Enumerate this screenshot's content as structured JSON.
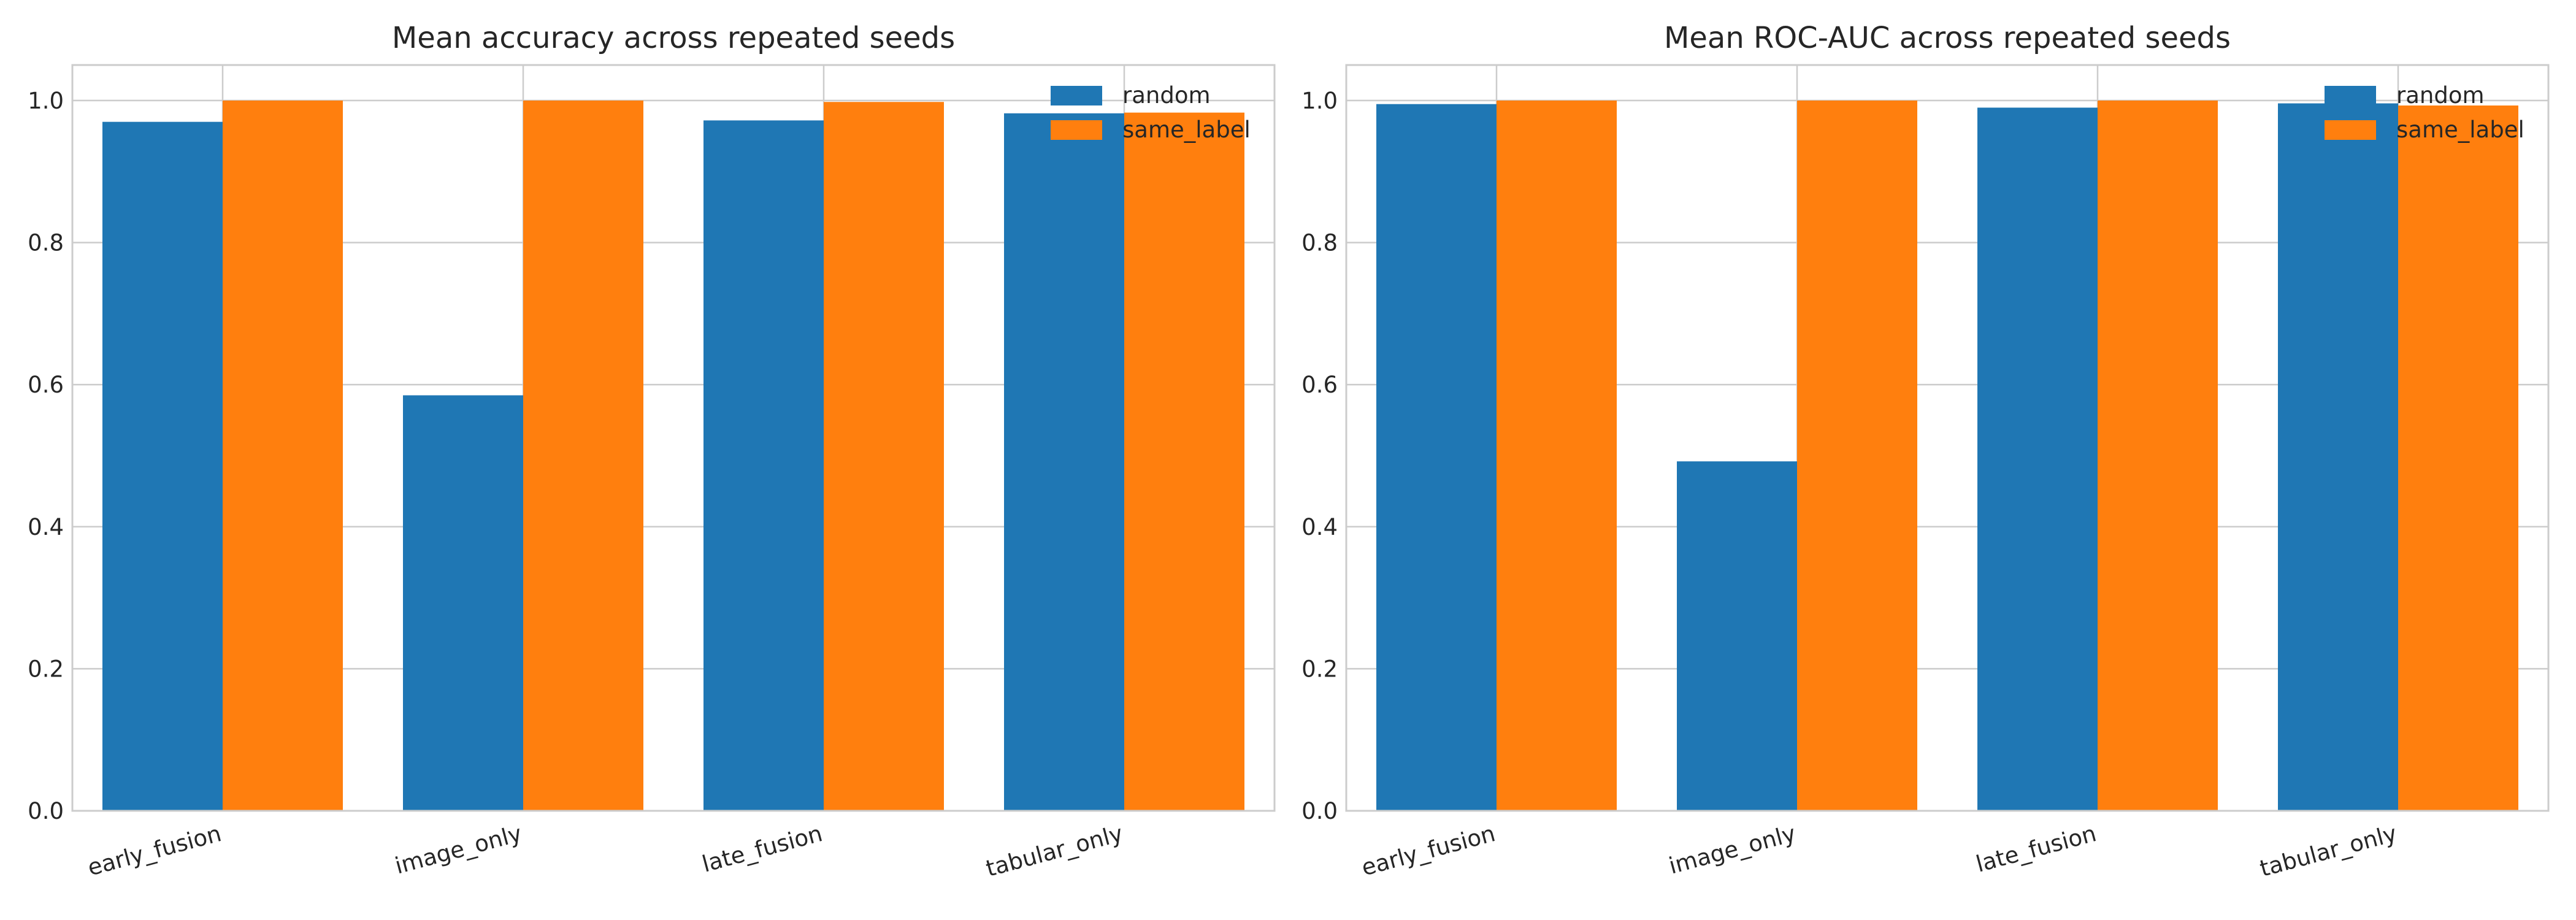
{
  "colors": {
    "random": "#1f77b4",
    "same_label": "#ff7f0e",
    "grid": "#cccccc",
    "frame": "#cccccc"
  },
  "chart_data": [
    {
      "type": "bar",
      "title": "Mean accuracy across repeated seeds",
      "xlabel": "",
      "ylabel": "",
      "categories": [
        "early_fusion",
        "image_only",
        "late_fusion",
        "tabular_only"
      ],
      "series": [
        {
          "name": "random",
          "values": [
            0.97,
            0.585,
            0.972,
            0.982
          ]
        },
        {
          "name": "same_label",
          "values": [
            1.0,
            1.0,
            0.998,
            0.983
          ]
        }
      ],
      "ylim": [
        0,
        1.05
      ],
      "yticks": [
        "0.0",
        "0.2",
        "0.4",
        "0.6",
        "0.8",
        "1.0"
      ],
      "grid": true,
      "legend": "top-right"
    },
    {
      "type": "bar",
      "title": "Mean ROC-AUC across repeated seeds",
      "xlabel": "",
      "ylabel": "",
      "categories": [
        "early_fusion",
        "image_only",
        "late_fusion",
        "tabular_only"
      ],
      "series": [
        {
          "name": "random",
          "values": [
            0.995,
            0.492,
            0.99,
            0.996
          ]
        },
        {
          "name": "same_label",
          "values": [
            1.0,
            1.0,
            1.0,
            0.993
          ]
        }
      ],
      "ylim": [
        0,
        1.05
      ],
      "yticks": [
        "0.0",
        "0.2",
        "0.4",
        "0.6",
        "0.8",
        "1.0"
      ],
      "grid": true,
      "legend": "top-right"
    }
  ]
}
